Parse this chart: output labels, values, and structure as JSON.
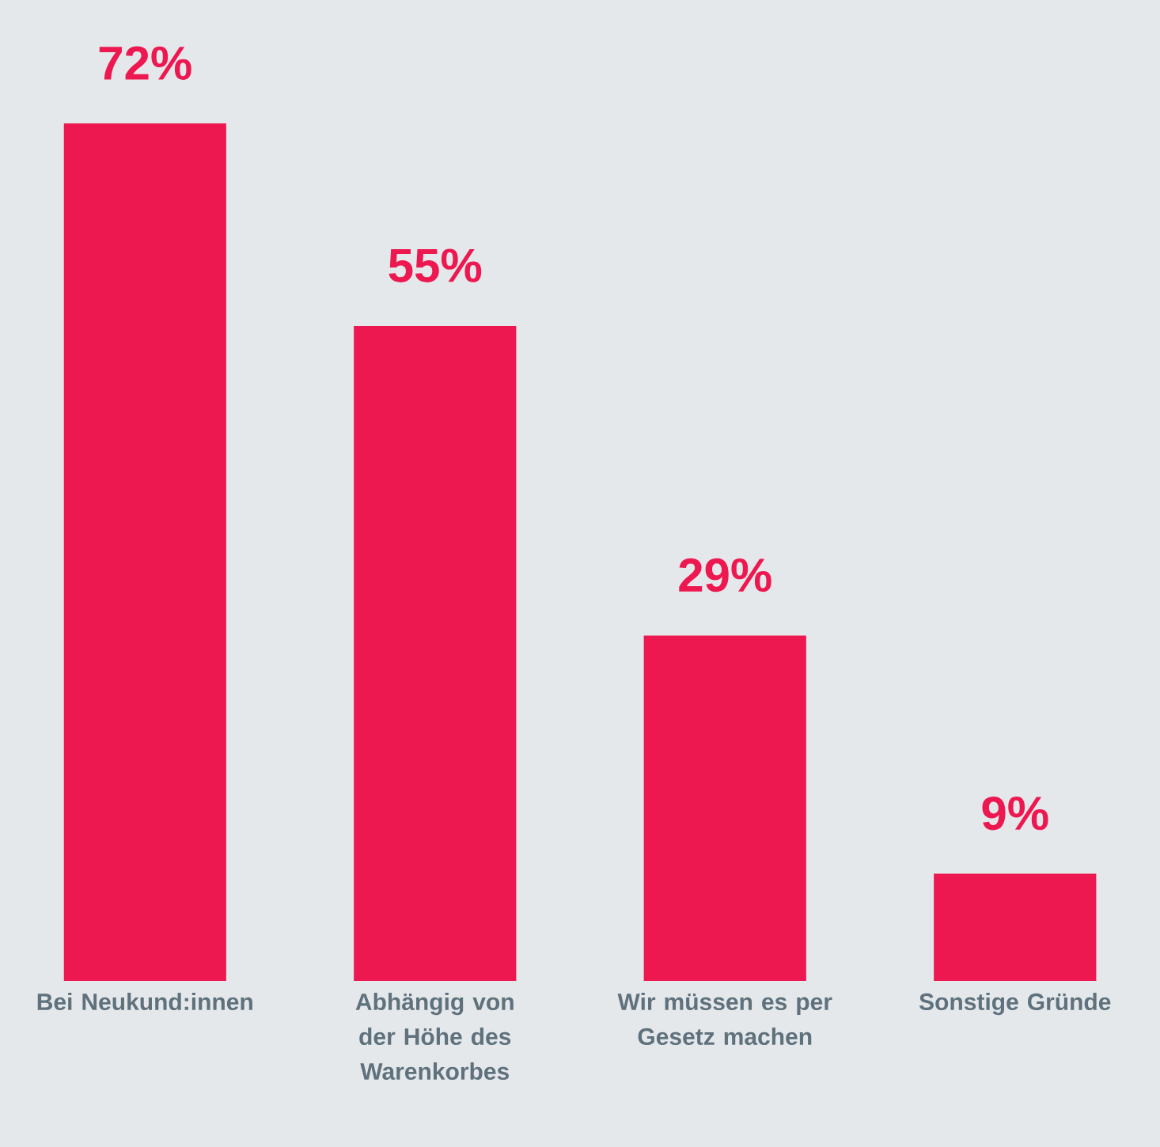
{
  "chart_data": {
    "type": "bar",
    "categories": [
      "Bei Neukund:innen",
      "Abhängig von der Höhe des Warenkorbes",
      "Wir müssen es per Gesetz machen",
      "Sonstige Gründe"
    ],
    "values": [
      72,
      55,
      29,
      9
    ],
    "value_labels": [
      "72%",
      "55%",
      "29%",
      "9%"
    ],
    "color": "#ee1851"
  }
}
